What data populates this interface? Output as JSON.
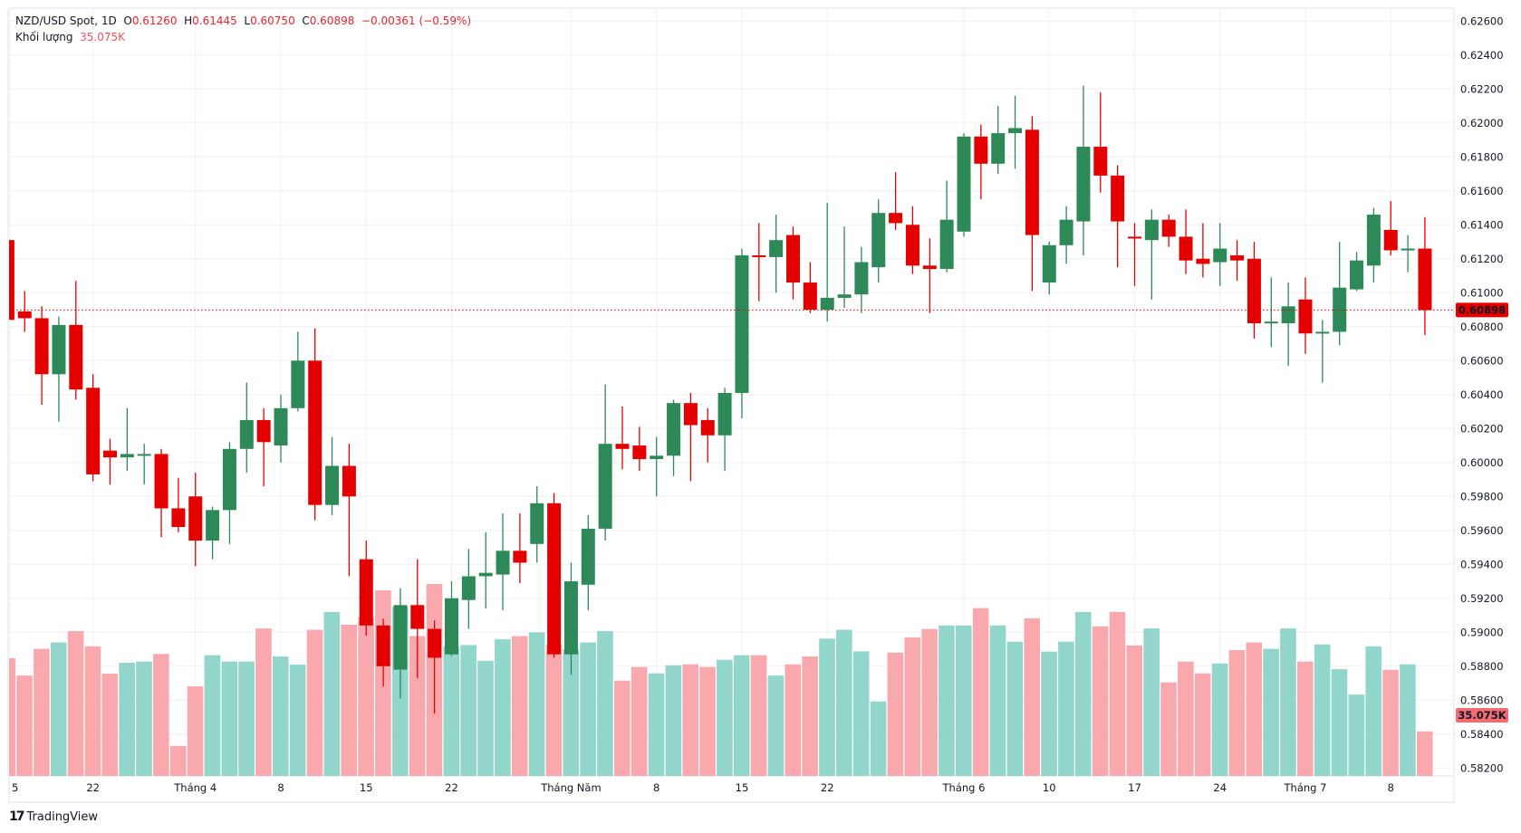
{
  "header": {
    "symbol": "NZD/USD Spot, 1D",
    "open_label": "O",
    "open": "0.61260",
    "high_label": "H",
    "high": "0.61445",
    "low_label": "L",
    "low": "0.60750",
    "close_label": "C",
    "close": "0.60898",
    "change": "−0.00361 (−0.59%)",
    "volume_label": "Khối lượng",
    "volume": "35.075K"
  },
  "price_label": "0.60898",
  "volume_badge": "35.075K",
  "brand": "TradingView",
  "colors": {
    "up": "#2d8a58",
    "down": "#e50000",
    "vol_up": "#92d5ca",
    "vol_down": "#f9a8ae",
    "last_price": "#e50000",
    "grid": "#f0f0f3"
  },
  "chart_data": {
    "type": "candlestick",
    "ylim": [
      0.582,
      0.626
    ],
    "ytick_step": 0.002,
    "yticks": [
      "0.62600",
      "0.62400",
      "0.62200",
      "0.62000",
      "0.61800",
      "0.61600",
      "0.61400",
      "0.61200",
      "0.61000",
      "0.60800",
      "0.60600",
      "0.60400",
      "0.60200",
      "0.60000",
      "0.59800",
      "0.59600",
      "0.59400",
      "0.59200",
      "0.59000",
      "0.58800",
      "0.58600",
      "0.58400",
      "0.58200"
    ],
    "xticks": [
      {
        "index": 0,
        "label": "5"
      },
      {
        "index": 5,
        "label": "22"
      },
      {
        "index": 11,
        "label": "Tháng 4"
      },
      {
        "index": 16,
        "label": "8"
      },
      {
        "index": 21,
        "label": "15"
      },
      {
        "index": 26,
        "label": "22"
      },
      {
        "index": 33,
        "label": "Tháng Năm"
      },
      {
        "index": 38,
        "label": "8"
      },
      {
        "index": 43,
        "label": "15"
      },
      {
        "index": 48,
        "label": "22"
      },
      {
        "index": 56,
        "label": "Tháng 6"
      },
      {
        "index": 61,
        "label": "10"
      },
      {
        "index": 66,
        "label": "17"
      },
      {
        "index": 71,
        "label": "24"
      },
      {
        "index": 76,
        "label": "Tháng 7"
      },
      {
        "index": 81,
        "label": "8"
      }
    ],
    "grid": true,
    "last_price": 0.60898,
    "ohlc": [
      [
        0.6131,
        0.6135,
        0.608,
        0.6084
      ],
      [
        0.6089,
        0.6101,
        0.6077,
        0.6085
      ],
      [
        0.6085,
        0.6092,
        0.6034,
        0.6052
      ],
      [
        0.6052,
        0.6086,
        0.6024,
        0.6081
      ],
      [
        0.6081,
        0.6107,
        0.6037,
        0.6043
      ],
      [
        0.6044,
        0.6052,
        0.5989,
        0.5993
      ],
      [
        0.6007,
        0.6014,
        0.5987,
        0.6003
      ],
      [
        0.6003,
        0.6032,
        0.5995,
        0.6005
      ],
      [
        0.6004,
        0.6011,
        0.5987,
        0.6005
      ],
      [
        0.6005,
        0.6008,
        0.5956,
        0.5973
      ],
      [
        0.5973,
        0.5991,
        0.5959,
        0.5962
      ],
      [
        0.598,
        0.5994,
        0.5939,
        0.5954
      ],
      [
        0.5954,
        0.5974,
        0.5943,
        0.5972
      ],
      [
        0.5972,
        0.6012,
        0.5952,
        0.6008
      ],
      [
        0.6008,
        0.6047,
        0.5994,
        0.6025
      ],
      [
        0.6025,
        0.6032,
        0.5986,
        0.6012
      ],
      [
        0.601,
        0.604,
        0.6,
        0.6032
      ],
      [
        0.6032,
        0.6077,
        0.603,
        0.606
      ],
      [
        0.606,
        0.6079,
        0.5966,
        0.5975
      ],
      [
        0.5975,
        0.6015,
        0.5969,
        0.5998
      ],
      [
        0.5998,
        0.6011,
        0.5933,
        0.598
      ],
      [
        0.5943,
        0.5954,
        0.5898,
        0.5904
      ],
      [
        0.5904,
        0.5908,
        0.5868,
        0.588
      ],
      [
        0.5878,
        0.5926,
        0.5861,
        0.5916
      ],
      [
        0.5916,
        0.5943,
        0.5873,
        0.5902
      ],
      [
        0.5902,
        0.5907,
        0.5852,
        0.5885
      ],
      [
        0.5887,
        0.593,
        0.5886,
        0.592
      ],
      [
        0.5919,
        0.5949,
        0.5902,
        0.5933
      ],
      [
        0.5933,
        0.5959,
        0.5914,
        0.5935
      ],
      [
        0.5934,
        0.597,
        0.5913,
        0.5948
      ],
      [
        0.5948,
        0.597,
        0.5929,
        0.5941
      ],
      [
        0.5952,
        0.5986,
        0.5941,
        0.5976
      ],
      [
        0.5976,
        0.5982,
        0.5885,
        0.5887
      ],
      [
        0.5887,
        0.5941,
        0.5875,
        0.593
      ],
      [
        0.5928,
        0.5969,
        0.5913,
        0.5961
      ],
      [
        0.5961,
        0.6046,
        0.5954,
        0.6011
      ],
      [
        0.6011,
        0.6033,
        0.5996,
        0.6008
      ],
      [
        0.601,
        0.6021,
        0.5995,
        0.6002
      ],
      [
        0.6002,
        0.6015,
        0.598,
        0.6004
      ],
      [
        0.6004,
        0.6037,
        0.5992,
        0.6035
      ],
      [
        0.6035,
        0.6041,
        0.5989,
        0.6022
      ],
      [
        0.6025,
        0.6032,
        0.6,
        0.6016
      ],
      [
        0.6016,
        0.6044,
        0.5995,
        0.6041
      ],
      [
        0.6041,
        0.6126,
        0.6026,
        0.6122
      ],
      [
        0.6122,
        0.6141,
        0.6095,
        0.6121
      ],
      [
        0.6121,
        0.6146,
        0.61,
        0.6131
      ],
      [
        0.6134,
        0.6139,
        0.6096,
        0.6106
      ],
      [
        0.6106,
        0.6118,
        0.6088,
        0.609
      ],
      [
        0.609,
        0.6153,
        0.6083,
        0.6097
      ],
      [
        0.6097,
        0.6139,
        0.6091,
        0.6099
      ],
      [
        0.6099,
        0.6127,
        0.6088,
        0.6118
      ],
      [
        0.6115,
        0.6155,
        0.6106,
        0.6147
      ],
      [
        0.6147,
        0.6171,
        0.6137,
        0.6141
      ],
      [
        0.614,
        0.6151,
        0.6111,
        0.6116
      ],
      [
        0.6116,
        0.6132,
        0.6088,
        0.6114
      ],
      [
        0.6114,
        0.6166,
        0.6112,
        0.6143
      ],
      [
        0.6136,
        0.6194,
        0.6133,
        0.6192
      ],
      [
        0.6192,
        0.6199,
        0.6155,
        0.6176
      ],
      [
        0.6176,
        0.621,
        0.617,
        0.6194
      ],
      [
        0.6194,
        0.6216,
        0.6173,
        0.6197
      ],
      [
        0.6196,
        0.6204,
        0.6101,
        0.6134
      ],
      [
        0.6106,
        0.613,
        0.6099,
        0.6128
      ],
      [
        0.6128,
        0.6151,
        0.6117,
        0.6143
      ],
      [
        0.6142,
        0.6222,
        0.6122,
        0.6186
      ],
      [
        0.6186,
        0.6218,
        0.6159,
        0.6169
      ],
      [
        0.6169,
        0.6175,
        0.6115,
        0.6142
      ],
      [
        0.6133,
        0.6141,
        0.6104,
        0.6132
      ],
      [
        0.6131,
        0.6149,
        0.6096,
        0.6143
      ],
      [
        0.6143,
        0.6146,
        0.6127,
        0.6133
      ],
      [
        0.6133,
        0.6149,
        0.6111,
        0.6119
      ],
      [
        0.612,
        0.6141,
        0.6109,
        0.6117
      ],
      [
        0.6118,
        0.6141,
        0.6104,
        0.6126
      ],
      [
        0.6122,
        0.6131,
        0.6107,
        0.6119
      ],
      [
        0.612,
        0.613,
        0.6073,
        0.6082
      ],
      [
        0.6082,
        0.6109,
        0.6068,
        0.6083
      ],
      [
        0.6082,
        0.6106,
        0.6057,
        0.6092
      ],
      [
        0.6096,
        0.6109,
        0.6064,
        0.6076
      ],
      [
        0.6076,
        0.6084,
        0.6047,
        0.6077
      ],
      [
        0.6077,
        0.613,
        0.6069,
        0.6103
      ],
      [
        0.6102,
        0.6124,
        0.6101,
        0.6119
      ],
      [
        0.6116,
        0.615,
        0.6106,
        0.6146
      ],
      [
        0.6137,
        0.6154,
        0.6122,
        0.6125
      ],
      [
        0.6125,
        0.6134,
        0.6112,
        0.6126
      ],
      [
        0.6126,
        0.61445,
        0.6075,
        0.60898
      ]
    ],
    "volume_k": [
      92.6,
      79,
      100,
      105,
      114,
      102,
      80.5,
      89,
      90,
      96,
      23.6,
      70.5,
      95,
      90,
      90,
      116,
      94,
      87.6,
      115,
      129,
      119,
      125,
      146,
      133,
      110,
      151,
      102,
      103,
      90.6,
      107.5,
      110,
      113,
      103,
      99.7,
      105,
      114,
      75,
      85.7,
      80.7,
      87,
      87.8,
      85.7,
      91.4,
      95,
      95,
      79,
      87.8,
      94,
      108,
      115,
      98,
      58.6,
      97,
      109,
      115.6,
      118.4,
      118.4,
      132,
      118.4,
      105.6,
      124,
      97.8,
      105.6,
      129,
      117.7,
      129,
      102.7,
      116,
      73.6,
      90,
      80.7,
      88.5,
      99,
      105,
      100,
      116,
      90,
      103.5,
      84,
      64,
      102,
      83.5,
      87.8,
      35.075
    ]
  }
}
